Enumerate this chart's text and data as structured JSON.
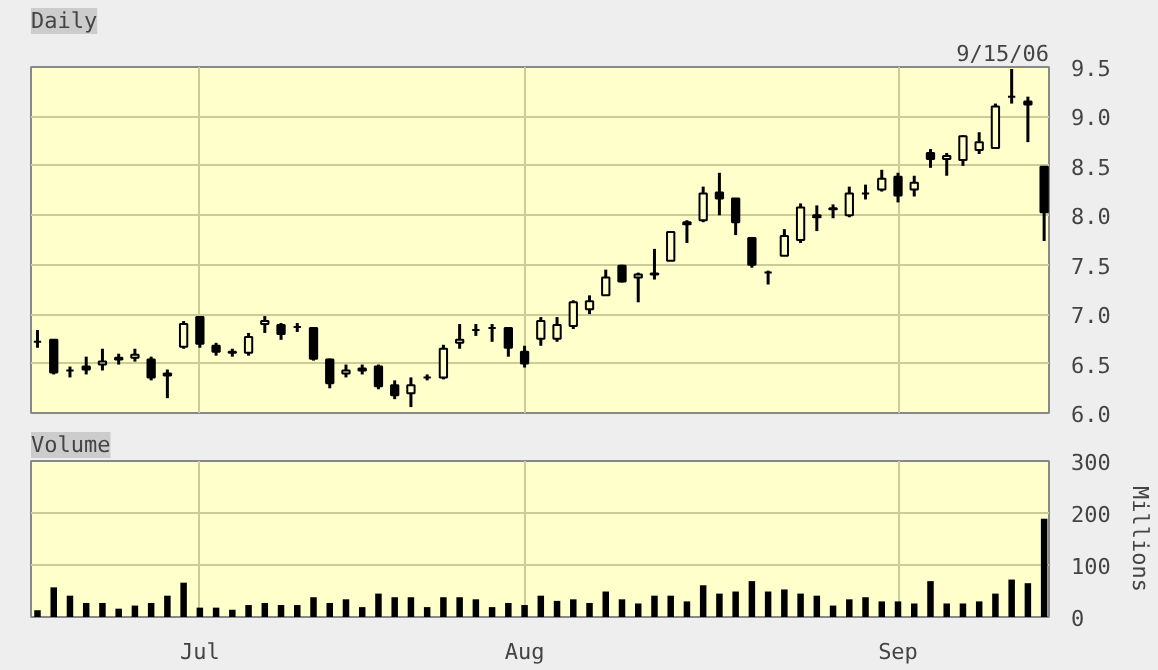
{
  "chart_data": [
    {
      "type": "candlestick",
      "title": "Daily",
      "annotations": [
        "9/15/06"
      ],
      "ohlc": [
        [
          6.72,
          6.84,
          6.66,
          6.72
        ],
        [
          6.74,
          6.74,
          6.39,
          6.41
        ],
        [
          6.43,
          6.47,
          6.36,
          6.43
        ],
        [
          6.47,
          6.57,
          6.39,
          6.44
        ],
        [
          6.49,
          6.65,
          6.43,
          6.52
        ],
        [
          6.54,
          6.6,
          6.49,
          6.56
        ],
        [
          6.56,
          6.65,
          6.52,
          6.59
        ],
        [
          6.54,
          6.57,
          6.33,
          6.36
        ],
        [
          6.38,
          6.44,
          6.15,
          6.4
        ],
        [
          6.67,
          6.93,
          6.65,
          6.9
        ],
        [
          6.97,
          6.98,
          6.66,
          6.7
        ],
        [
          6.68,
          6.71,
          6.58,
          6.62
        ],
        [
          6.61,
          6.65,
          6.57,
          6.62
        ],
        [
          6.61,
          6.81,
          6.58,
          6.77
        ],
        [
          6.9,
          6.98,
          6.81,
          6.93
        ],
        [
          6.89,
          6.91,
          6.74,
          6.8
        ],
        [
          6.87,
          6.91,
          6.82,
          6.87
        ],
        [
          6.86,
          6.87,
          6.53,
          6.55
        ],
        [
          6.54,
          6.55,
          6.25,
          6.3
        ],
        [
          6.4,
          6.49,
          6.36,
          6.43
        ],
        [
          6.43,
          6.49,
          6.39,
          6.45
        ],
        [
          6.47,
          6.49,
          6.24,
          6.27
        ],
        [
          6.28,
          6.33,
          6.14,
          6.18
        ],
        [
          6.2,
          6.36,
          6.06,
          6.28
        ],
        [
          6.36,
          6.39,
          6.33,
          6.36
        ],
        [
          6.36,
          6.69,
          6.34,
          6.65
        ],
        [
          6.71,
          6.9,
          6.65,
          6.74
        ],
        [
          6.84,
          6.9,
          6.78,
          6.84
        ],
        [
          6.86,
          6.9,
          6.72,
          6.86
        ],
        [
          6.86,
          6.87,
          6.57,
          6.66
        ],
        [
          6.62,
          6.68,
          6.46,
          6.5
        ],
        [
          6.75,
          6.97,
          6.68,
          6.93
        ],
        [
          6.75,
          6.97,
          6.72,
          6.89
        ],
        [
          6.88,
          7.14,
          6.85,
          7.12
        ],
        [
          7.05,
          7.19,
          7.0,
          7.13
        ],
        [
          7.19,
          7.45,
          7.19,
          7.37
        ],
        [
          7.49,
          7.5,
          7.32,
          7.33
        ],
        [
          7.37,
          7.42,
          7.12,
          7.4
        ],
        [
          7.4,
          7.66,
          7.35,
          7.41
        ],
        [
          7.54,
          7.84,
          7.54,
          7.83
        ],
        [
          7.93,
          7.95,
          7.72,
          7.91
        ],
        [
          7.95,
          8.29,
          7.93,
          8.22
        ],
        [
          8.23,
          8.43,
          8.0,
          8.17
        ],
        [
          8.17,
          8.17,
          7.8,
          7.93
        ],
        [
          7.77,
          7.77,
          7.47,
          7.5
        ],
        [
          7.42,
          7.44,
          7.3,
          7.42
        ],
        [
          7.59,
          7.86,
          7.59,
          7.79
        ],
        [
          7.75,
          8.12,
          7.72,
          8.08
        ],
        [
          7.98,
          8.1,
          7.84,
          8.0
        ],
        [
          8.07,
          8.11,
          7.97,
          8.06
        ],
        [
          8.0,
          8.29,
          7.98,
          8.22
        ],
        [
          8.22,
          8.31,
          8.16,
          8.22
        ],
        [
          8.26,
          8.46,
          8.24,
          8.37
        ],
        [
          8.39,
          8.43,
          8.13,
          8.2
        ],
        [
          8.26,
          8.4,
          8.19,
          8.33
        ],
        [
          8.63,
          8.67,
          8.48,
          8.57
        ],
        [
          8.57,
          8.63,
          8.4,
          8.6
        ],
        [
          8.56,
          8.81,
          8.5,
          8.8
        ],
        [
          8.66,
          8.84,
          8.62,
          8.74
        ],
        [
          8.68,
          9.13,
          8.68,
          9.1
        ],
        [
          9.2,
          9.48,
          9.13,
          9.2
        ],
        [
          9.15,
          9.2,
          8.74,
          9.12
        ],
        [
          8.49,
          8.49,
          7.74,
          8.03
        ]
      ],
      "color": "#000000",
      "ylim": [
        6.0,
        9.5
      ],
      "yticks": [
        {
          "value": 6,
          "label": "6.0"
        },
        {
          "value": 6.5,
          "label": "6.5"
        },
        {
          "value": 7,
          "label": "7.0"
        },
        {
          "value": 7.5,
          "label": "7.5"
        },
        {
          "value": 8,
          "label": "8.0"
        },
        {
          "value": 8.5,
          "label": "8.5"
        },
        {
          "value": 9,
          "label": "9.0"
        },
        {
          "value": 9.5,
          "label": "9.5"
        }
      ],
      "grid": true,
      "tick_labels": "y"
    },
    {
      "type": "bar",
      "title": "Volume",
      "ylabel": "Millions",
      "categories": [
        null,
        null,
        null,
        null,
        null,
        null,
        null,
        null,
        null,
        null,
        "Jul",
        null,
        null,
        null,
        null,
        null,
        null,
        null,
        null,
        null,
        null,
        null,
        null,
        null,
        null,
        null,
        null,
        null,
        null,
        null,
        "Aug",
        null,
        null,
        null,
        null,
        null,
        null,
        null,
        null,
        null,
        null,
        null,
        null,
        null,
        null,
        null,
        null,
        null,
        null,
        null,
        null,
        null,
        null,
        "Sep",
        null,
        null,
        null,
        null,
        null,
        null,
        null,
        null,
        null
      ],
      "values": [
        13,
        57,
        41,
        27,
        27,
        16,
        22,
        27,
        41,
        66,
        18,
        18,
        14,
        23,
        27,
        23,
        23,
        38,
        27,
        34,
        19,
        45,
        38,
        38,
        19,
        38,
        38,
        34,
        19,
        27,
        23,
        41,
        31,
        34,
        27,
        49,
        34,
        26,
        41,
        41,
        30,
        61,
        45,
        49,
        69,
        49,
        53,
        45,
        41,
        22,
        34,
        38,
        30,
        30,
        26,
        69,
        26,
        26,
        30,
        45,
        72,
        65,
        189
      ],
      "color": "#000000",
      "ylim": [
        0,
        300
      ],
      "yticks": [
        0,
        100,
        200,
        300
      ],
      "grid": true
    }
  ]
}
